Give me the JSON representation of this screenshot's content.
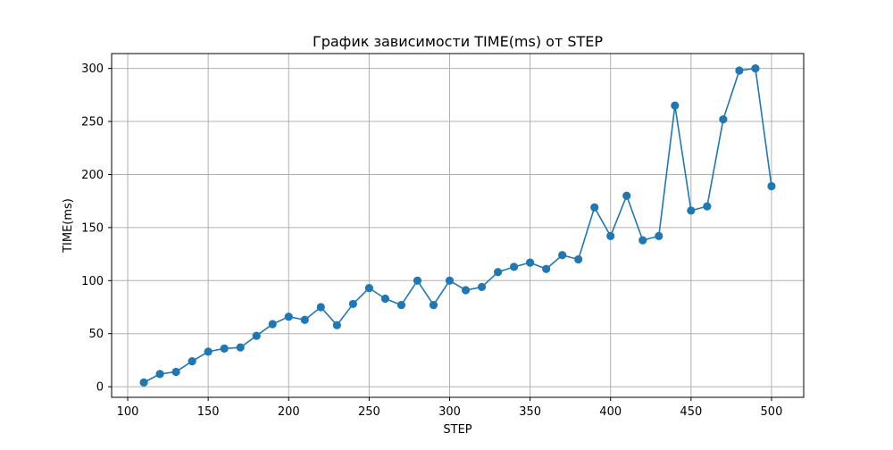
{
  "chart_data": {
    "type": "line",
    "title": "График зависимости TIME(ms) от STEP",
    "xlabel": "STEP",
    "ylabel": "TIME(ms)",
    "xlim": [
      90,
      520
    ],
    "ylim": [
      -10,
      314
    ],
    "xticks": [
      100,
      150,
      200,
      250,
      300,
      350,
      400,
      450,
      500
    ],
    "yticks": [
      0,
      50,
      100,
      150,
      200,
      250,
      300
    ],
    "grid": true,
    "markers": true,
    "series": [
      {
        "color": "#1f77b4",
        "x": [
          110,
          120,
          130,
          140,
          150,
          160,
          170,
          180,
          190,
          200,
          210,
          220,
          230,
          240,
          250,
          260,
          270,
          280,
          290,
          300,
          310,
          320,
          330,
          340,
          350,
          360,
          370,
          380,
          390,
          400,
          410,
          420,
          430,
          440,
          450,
          460,
          470,
          480,
          490,
          500
        ],
        "y": [
          4,
          12,
          14,
          24,
          33,
          36,
          37,
          48,
          59,
          66,
          63,
          75,
          58,
          78,
          93,
          83,
          77,
          100,
          77,
          100,
          91,
          94,
          108,
          113,
          117,
          111,
          124,
          120,
          169,
          142,
          180,
          138,
          142,
          265,
          166,
          170,
          252,
          298,
          300,
          189
        ]
      }
    ]
  }
}
